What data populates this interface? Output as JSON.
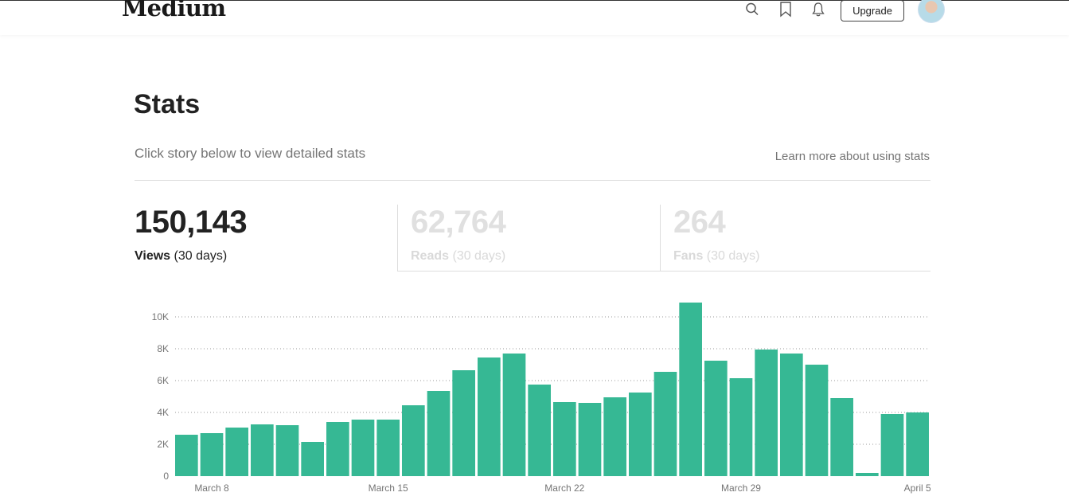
{
  "header": {
    "logo": "Medium",
    "upgrade_label": "Upgrade"
  },
  "page": {
    "title": "Stats",
    "subtitle": "Click story below to view detailed stats",
    "learn_link": "Learn more about using stats"
  },
  "tabs": [
    {
      "value": "150,143",
      "label": "Views",
      "period": "(30 days)",
      "active": true
    },
    {
      "value": "62,764",
      "label": "Reads",
      "period": "(30 days)",
      "active": false
    },
    {
      "value": "264",
      "label": "Fans",
      "period": "(30 days)",
      "active": false
    }
  ],
  "colors": {
    "bar": "#36b894",
    "text": "#222222",
    "muted": "#757575"
  },
  "chart_data": {
    "type": "bar",
    "values": [
      2600,
      2700,
      3050,
      3250,
      3200,
      2150,
      3400,
      3550,
      3550,
      4450,
      5350,
      6650,
      7450,
      7700,
      5750,
      4650,
      4600,
      4950,
      5250,
      6550,
      10900,
      7250,
      6150,
      7950,
      7700,
      7000,
      4900,
      200,
      3900,
      4000
    ],
    "yticks": [
      "0",
      "2K",
      "4K",
      "6K",
      "8K",
      "10K"
    ],
    "xticks": [
      {
        "index": 1,
        "label": "March 8"
      },
      {
        "index": 8,
        "label": "March 15"
      },
      {
        "index": 15,
        "label": "March 22"
      },
      {
        "index": 22,
        "label": "March 29"
      },
      {
        "index": 29,
        "label": "April 5"
      }
    ],
    "ylim": [
      0,
      10000
    ],
    "grid": true
  }
}
